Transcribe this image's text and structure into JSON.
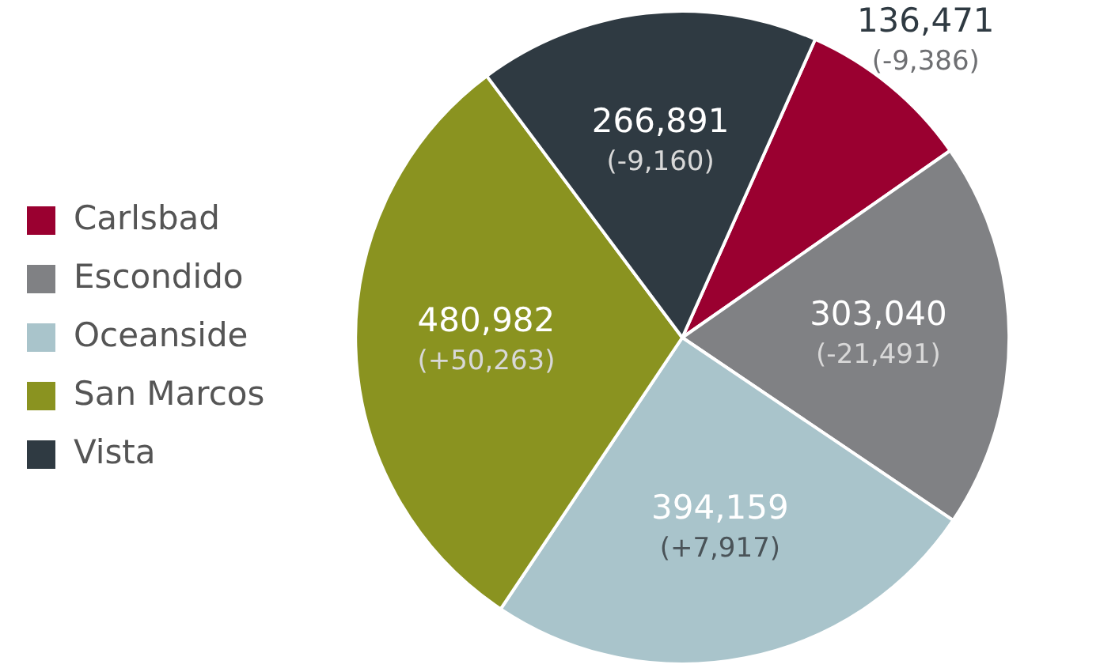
{
  "chart_data": {
    "type": "pie",
    "categories": [
      "Carlsbad",
      "Escondido",
      "Oceanside",
      "San Marcos",
      "Vista"
    ],
    "values": [
      136471,
      303040,
      394159,
      480982,
      266891
    ],
    "colors": [
      "#9a0030",
      "#808184",
      "#a9c4cb",
      "#8a9320",
      "#2f3a42"
    ],
    "value_labels": [
      "136,471\n(-9,386)",
      "303,040\n(-21,491)",
      "394,159\n(+7,917)",
      "480,982\n(+50,263)",
      "266,891\n(-9,160)"
    ],
    "legend": "left"
  }
}
